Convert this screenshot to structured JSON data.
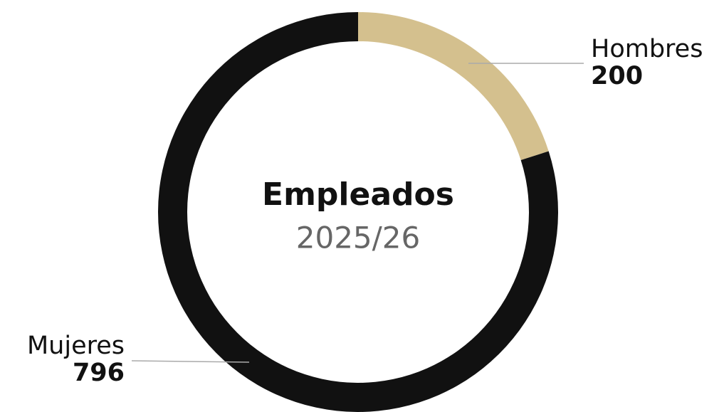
{
  "chart_data": {
    "type": "donut",
    "title": "Empleados",
    "subtitle": "2025/26",
    "categories": [
      "Hombres",
      "Mujeres"
    ],
    "values": [
      200,
      796
    ],
    "colors": [
      "#d4c08e",
      "#111111"
    ]
  }
}
